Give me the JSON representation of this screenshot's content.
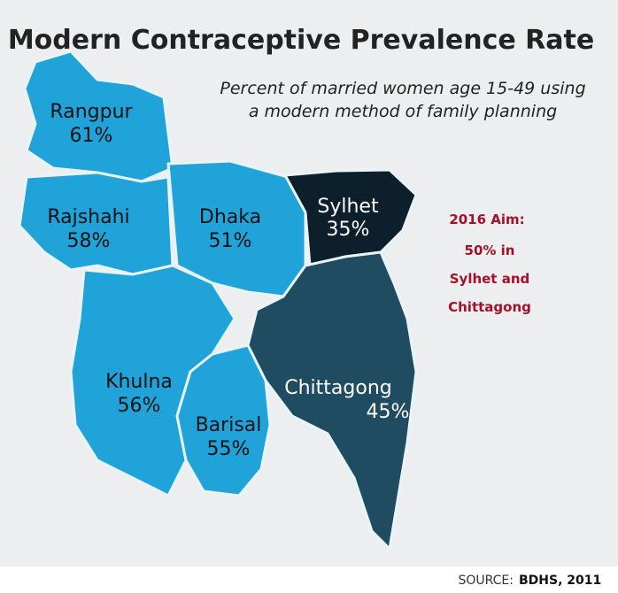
{
  "map": {
    "title": "Modern Contraceptive Prevalence Rate",
    "subtitle": [
      "Percent of married women age 15-49 using",
      "a modern method of family planning"
    ],
    "regions": [
      {
        "name": "Rangpur",
        "value": 61,
        "label": "61%",
        "color": "#1fa3d9"
      },
      {
        "name": "Rajshahi",
        "value": 58,
        "label": "58%",
        "color": "#1fa3d9"
      },
      {
        "name": "Dhaka",
        "value": 51,
        "label": "51%",
        "color": "#1fa3d9"
      },
      {
        "name": "Sylhet",
        "value": 35,
        "label": "35%",
        "color": "#0e1f2c"
      },
      {
        "name": "Khulna",
        "value": 56,
        "label": "56%",
        "color": "#1fa3d9"
      },
      {
        "name": "Barisal",
        "value": 55,
        "label": "55%",
        "color": "#1fa3d9"
      },
      {
        "name": "Chittagong",
        "value": 45,
        "label": "45%",
        "color": "#1f4c60"
      }
    ],
    "annotation": [
      "2016 Aim:",
      "50% in",
      "Sylhet and",
      "Chittagong"
    ],
    "source": {
      "prefix": "SOURCE:",
      "name": "BDHS, 2011"
    }
  }
}
